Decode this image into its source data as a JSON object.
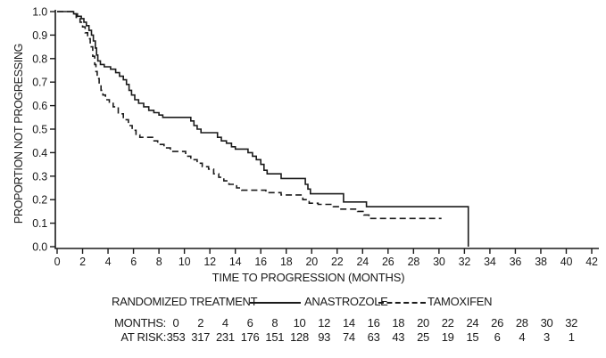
{
  "figure": {
    "y_axis_title": "PROPORTION NOT PROGRESSING",
    "x_axis_title": "TIME TO PROGRESSION (MONTHS)",
    "legend_title": "RANDOMIZED TREATMENT",
    "risk_table": {
      "months_label": "MONTHS:",
      "at_risk_label": "AT RISK:",
      "months": [
        0,
        2,
        4,
        6,
        8,
        10,
        12,
        14,
        16,
        18,
        20,
        22,
        24,
        26,
        28,
        30,
        32
      ],
      "at_risk": [
        353,
        317,
        231,
        176,
        151,
        128,
        93,
        74,
        63,
        43,
        25,
        19,
        15,
        6,
        4,
        3,
        1
      ]
    },
    "line_color": "#1a1a1a",
    "background_color": "#ffffff"
  },
  "chart_data": {
    "type": "line",
    "subtype": "kaplan-meier-step",
    "title": "",
    "xlabel": "TIME TO PROGRESSION (MONTHS)",
    "ylabel": "PROPORTION NOT PROGRESSING",
    "xlim": [
      0,
      42
    ],
    "ylim": [
      0.0,
      1.0
    ],
    "x_ticks": [
      0,
      2,
      4,
      6,
      8,
      10,
      12,
      14,
      16,
      18,
      20,
      22,
      24,
      26,
      28,
      30,
      32,
      34,
      36,
      38,
      40,
      42
    ],
    "y_ticks": [
      0.0,
      0.1,
      0.2,
      0.3,
      0.4,
      0.5,
      0.6,
      0.7,
      0.8,
      0.9,
      1.0
    ],
    "grid": false,
    "legend_position": "bottom",
    "series": [
      {
        "name": "ANASTROZOLE",
        "line_style": "solid",
        "color": "#1a1a1a",
        "step_points": [
          [
            0,
            1.0
          ],
          [
            1.3,
            0.99
          ],
          [
            1.6,
            0.98
          ],
          [
            1.9,
            0.97
          ],
          [
            2.1,
            0.955
          ],
          [
            2.3,
            0.94
          ],
          [
            2.5,
            0.92
          ],
          [
            2.7,
            0.9
          ],
          [
            2.85,
            0.875
          ],
          [
            3.0,
            0.845
          ],
          [
            3.1,
            0.815
          ],
          [
            3.2,
            0.79
          ],
          [
            3.4,
            0.775
          ],
          [
            3.7,
            0.765
          ],
          [
            4.2,
            0.755
          ],
          [
            4.6,
            0.74
          ],
          [
            4.9,
            0.725
          ],
          [
            5.2,
            0.71
          ],
          [
            5.45,
            0.69
          ],
          [
            5.65,
            0.665
          ],
          [
            5.85,
            0.645
          ],
          [
            6.1,
            0.625
          ],
          [
            6.4,
            0.61
          ],
          [
            6.8,
            0.595
          ],
          [
            7.2,
            0.58
          ],
          [
            7.6,
            0.57
          ],
          [
            8.0,
            0.56
          ],
          [
            8.3,
            0.55
          ],
          [
            10.5,
            0.535
          ],
          [
            10.75,
            0.515
          ],
          [
            11.0,
            0.5
          ],
          [
            11.3,
            0.485
          ],
          [
            12.6,
            0.465
          ],
          [
            12.9,
            0.45
          ],
          [
            13.3,
            0.44
          ],
          [
            13.7,
            0.425
          ],
          [
            14.0,
            0.415
          ],
          [
            15.0,
            0.4
          ],
          [
            15.35,
            0.385
          ],
          [
            15.65,
            0.37
          ],
          [
            16.0,
            0.35
          ],
          [
            16.25,
            0.325
          ],
          [
            16.5,
            0.31
          ],
          [
            17.6,
            0.29
          ],
          [
            19.5,
            0.265
          ],
          [
            19.7,
            0.245
          ],
          [
            19.9,
            0.225
          ],
          [
            22.5,
            0.19
          ],
          [
            24.3,
            0.17
          ],
          [
            32.3,
            0.0
          ]
        ]
      },
      {
        "name": "TAMOXIFEN",
        "line_style": "dashed",
        "color": "#1a1a1a",
        "step_points": [
          [
            0,
            1.0
          ],
          [
            1.2,
            0.99
          ],
          [
            1.5,
            0.975
          ],
          [
            1.8,
            0.955
          ],
          [
            2.0,
            0.935
          ],
          [
            2.2,
            0.91
          ],
          [
            2.4,
            0.885
          ],
          [
            2.6,
            0.85
          ],
          [
            2.8,
            0.81
          ],
          [
            2.95,
            0.775
          ],
          [
            3.05,
            0.745
          ],
          [
            3.15,
            0.715
          ],
          [
            3.3,
            0.69
          ],
          [
            3.45,
            0.665
          ],
          [
            3.6,
            0.645
          ],
          [
            3.8,
            0.625
          ],
          [
            4.1,
            0.61
          ],
          [
            4.4,
            0.595
          ],
          [
            4.8,
            0.565
          ],
          [
            5.2,
            0.54
          ],
          [
            5.6,
            0.515
          ],
          [
            5.9,
            0.495
          ],
          [
            6.2,
            0.475
          ],
          [
            6.5,
            0.465
          ],
          [
            7.5,
            0.45
          ],
          [
            7.9,
            0.435
          ],
          [
            8.4,
            0.42
          ],
          [
            8.9,
            0.405
          ],
          [
            10.1,
            0.385
          ],
          [
            10.5,
            0.37
          ],
          [
            11.0,
            0.355
          ],
          [
            11.4,
            0.34
          ],
          [
            11.9,
            0.33
          ],
          [
            12.3,
            0.31
          ],
          [
            12.7,
            0.295
          ],
          [
            13.1,
            0.28
          ],
          [
            13.5,
            0.265
          ],
          [
            14.1,
            0.25
          ],
          [
            14.5,
            0.24
          ],
          [
            16.4,
            0.23
          ],
          [
            17.6,
            0.22
          ],
          [
            19.3,
            0.2
          ],
          [
            19.8,
            0.185
          ],
          [
            20.5,
            0.18
          ],
          [
            21.7,
            0.17
          ],
          [
            22.3,
            0.16
          ],
          [
            23.6,
            0.15
          ],
          [
            24.1,
            0.135
          ],
          [
            24.5,
            0.12
          ],
          [
            30.2,
            0.12
          ]
        ]
      }
    ]
  }
}
